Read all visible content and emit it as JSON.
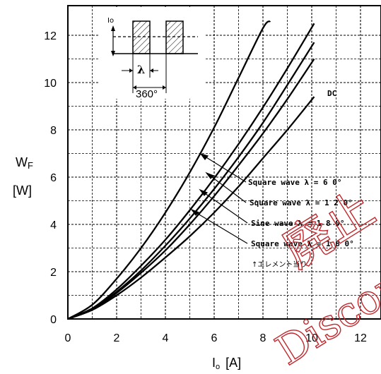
{
  "chart_data": {
    "type": "line",
    "title": "",
    "xlabel": "Io [A]",
    "ylabel": "WF [W]",
    "xlabel_main": "I",
    "xlabel_sub": "o",
    "xlabel_unit": "[A]",
    "ylabel_main": "W",
    "ylabel_sub": "F",
    "ylabel_unit": "[W]",
    "xlim": [
      0,
      13
    ],
    "ylim": [
      0,
      13
    ],
    "xticks": [
      0,
      2,
      4,
      6,
      8,
      10,
      12
    ],
    "yticks": [
      0,
      2,
      4,
      6,
      8,
      10,
      12
    ],
    "grid": true,
    "series": [
      {
        "name": "Square wave λ = 60°",
        "x": [
          0,
          1,
          2,
          3,
          4,
          5,
          6,
          7,
          8,
          8.3
        ],
        "y": [
          0,
          0.6,
          1.7,
          3.0,
          4.5,
          6.2,
          8.1,
          10.2,
          12.3,
          12.6
        ]
      },
      {
        "name": "Square wave λ = 120°",
        "x": [
          0,
          1,
          2,
          3,
          4,
          5,
          6,
          7,
          8,
          9,
          10.1
        ],
        "y": [
          0,
          0.45,
          1.25,
          2.25,
          3.35,
          4.6,
          5.95,
          7.4,
          8.95,
          10.6,
          12.5
        ]
      },
      {
        "name": "Sine wave λ = 180°",
        "x": [
          0,
          1,
          2,
          3,
          4,
          5,
          6,
          7,
          8,
          9,
          10.1
        ],
        "y": [
          0,
          0.42,
          1.15,
          2.05,
          3.1,
          4.25,
          5.5,
          6.85,
          8.3,
          9.9,
          11.7
        ]
      },
      {
        "name": "Square wave λ = 180°",
        "x": [
          0,
          1,
          2,
          3,
          4,
          5,
          6,
          7,
          8,
          9,
          10.1
        ],
        "y": [
          0,
          0.4,
          1.1,
          1.95,
          2.9,
          4.0,
          5.2,
          6.5,
          7.85,
          9.3,
          11.0
        ]
      },
      {
        "name": "DC",
        "x": [
          0,
          1,
          2,
          3,
          4,
          5,
          6,
          7,
          8,
          9,
          10.1
        ],
        "y": [
          0,
          0.38,
          1.0,
          1.75,
          2.6,
          3.5,
          4.5,
          5.6,
          6.8,
          8.0,
          9.4
        ]
      }
    ],
    "annotations": {
      "dc": "DC",
      "sq60": "Square wave λ =  6 0°",
      "sq120": "Square wave λ = 1 2 0°",
      "sine180": "Sine wave   λ = 1 8 0°",
      "sq180": "Square wave λ = 1 8 0°",
      "per_element": "↑エレメント当り"
    },
    "inset": {
      "current_label": "Io",
      "lambda_label": "λ",
      "period_label": "360°"
    },
    "watermark": {
      "line1": "廃止",
      "line2": "Discon"
    }
  }
}
